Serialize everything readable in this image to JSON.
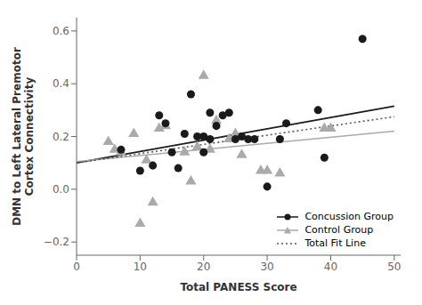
{
  "chart_data": {
    "type": "scatter",
    "xlabel": "Total PANESS Score",
    "ylabel": "DMN to Left Lateral Premotor\nCortex Connectivity",
    "xlim": [
      0,
      51
    ],
    "ylim": [
      -0.25,
      0.65
    ],
    "xticks": [
      0,
      10,
      20,
      30,
      40,
      50
    ],
    "yticks": [
      {
        "value": -0.2,
        "label": "−0.2"
      },
      {
        "value": 0.0,
        "label": "0.0"
      },
      0.2,
      0.4,
      0.6
    ],
    "grid": false,
    "legend": "lower right",
    "series": [
      {
        "name": "Concussion Group",
        "type": "scatter",
        "color": "#1a1a1a",
        "marker": "circle",
        "x": [
          7,
          10,
          12,
          13,
          14,
          15,
          16,
          17,
          18,
          19,
          20,
          20,
          21,
          21,
          22,
          23,
          24,
          25,
          26,
          27,
          28,
          30,
          32,
          33,
          38,
          39,
          45
        ],
        "values": [
          0.15,
          0.07,
          0.09,
          0.28,
          0.25,
          0.14,
          0.08,
          0.21,
          0.36,
          0.2,
          0.14,
          0.2,
          0.29,
          0.19,
          0.24,
          0.28,
          0.29,
          0.19,
          0.2,
          0.19,
          0.19,
          0.01,
          0.19,
          0.25,
          0.3,
          0.12,
          0.57
        ],
        "fit": {
          "x": [
            0,
            50
          ],
          "values": [
            0.1,
            0.315
          ]
        }
      },
      {
        "name": "Control Group",
        "type": "scatter",
        "color": "#aaaaaa",
        "marker": "triangle",
        "x": [
          5,
          6,
          7,
          9,
          10,
          11,
          12,
          13,
          14,
          17,
          18,
          19,
          20,
          21,
          22,
          24,
          25,
          26,
          29,
          30,
          32,
          39,
          40
        ],
        "values": [
          0.18,
          0.15,
          0.14,
          0.21,
          -0.13,
          0.11,
          -0.05,
          0.23,
          0.24,
          0.14,
          0.03,
          0.16,
          0.43,
          0.15,
          0.26,
          0.19,
          0.21,
          0.13,
          0.07,
          0.07,
          0.06,
          0.23,
          0.23
        ],
        "fit": {
          "x": [
            0,
            50
          ],
          "values": [
            0.105,
            0.22
          ]
        }
      },
      {
        "name": "Total Fit Line",
        "type": "line",
        "color": "#555555",
        "line_style": "dotted",
        "x": [
          0,
          50
        ],
        "values": [
          0.1,
          0.275
        ]
      }
    ]
  }
}
